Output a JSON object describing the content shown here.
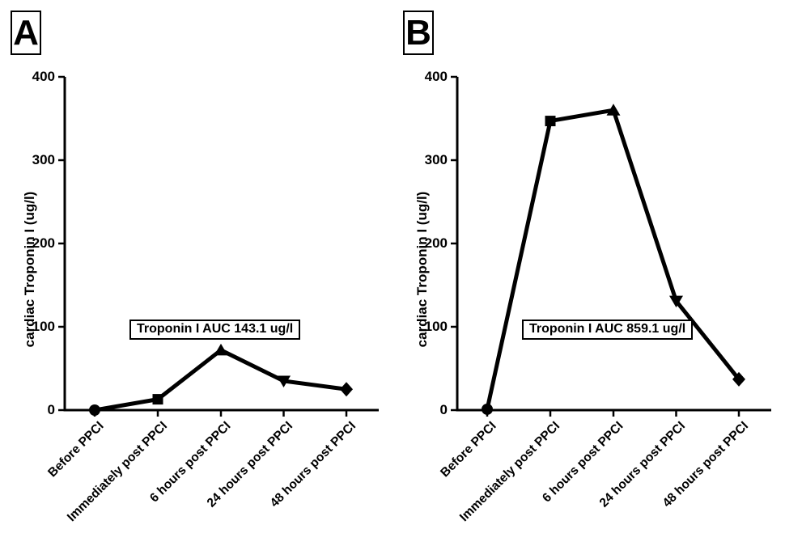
{
  "figure": {
    "background_color": "#ffffff",
    "ink_color": "#000000"
  },
  "chart_data": [
    {
      "type": "line",
      "panel_label": "A",
      "categories": [
        "Before PPCI",
        "Immediately post PPCI",
        "6 hours post PPCI",
        "24 hours post PPCI",
        "48 hours post PPCI"
      ],
      "values": [
        0,
        13,
        72,
        35,
        25
      ],
      "markers": [
        "circle",
        "square",
        "triangle-up",
        "triangle-down",
        "diamond"
      ],
      "ylabel": "cardiac Troponin I (ug/l)",
      "xlabel": "",
      "ylim": [
        0,
        400
      ],
      "yticks": [
        0,
        100,
        200,
        300,
        400
      ],
      "annotation": "Troponin I AUC 143.1 ug/l",
      "grid": false,
      "legend": "none",
      "line_color": "#000000"
    },
    {
      "type": "line",
      "panel_label": "B",
      "categories": [
        "Before PPCI",
        "Immediately post PPCI",
        "6 hours post PPCI",
        "24 hours post PPCI",
        "48 hours post PPCI"
      ],
      "values": [
        1,
        347,
        360,
        131,
        37
      ],
      "markers": [
        "circle",
        "square",
        "triangle-up",
        "triangle-down",
        "diamond"
      ],
      "ylabel": "cardiac Troponin I (ug/l)",
      "xlabel": "",
      "ylim": [
        0,
        400
      ],
      "yticks": [
        0,
        100,
        200,
        300,
        400
      ],
      "annotation": "Troponin I AUC 859.1 ug/l",
      "grid": false,
      "legend": "none",
      "line_color": "#000000"
    }
  ]
}
